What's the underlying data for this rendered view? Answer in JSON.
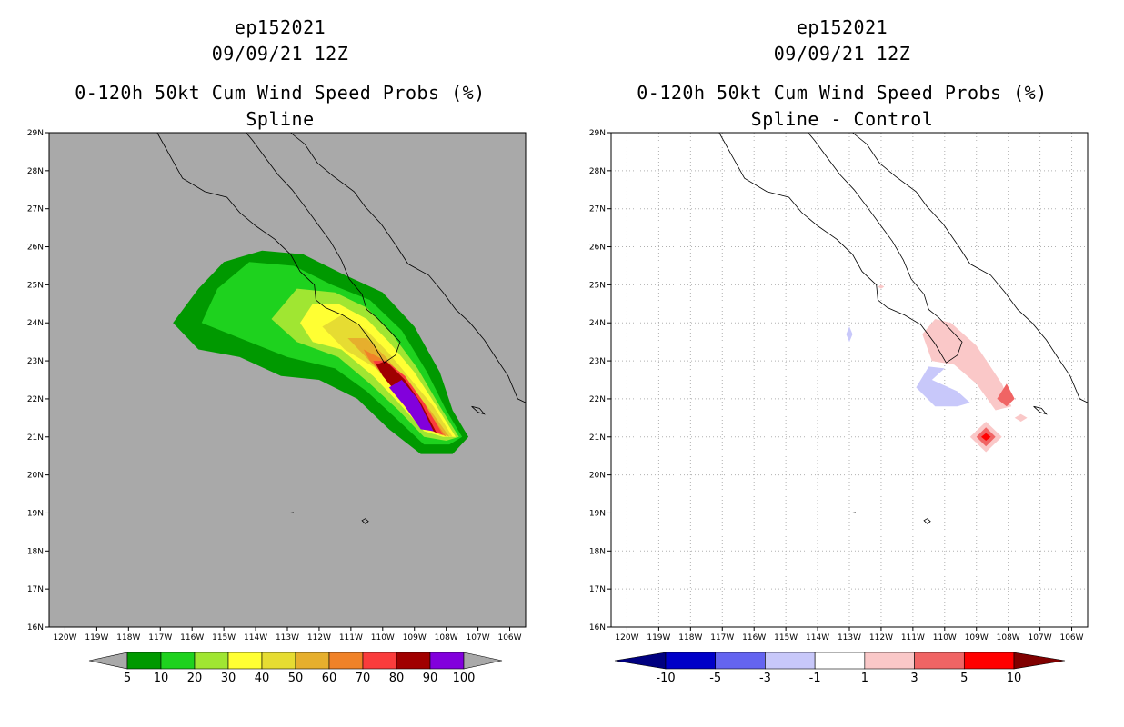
{
  "chart_data": [
    {
      "type": "heatmap",
      "storm_id": "ep152021",
      "datetime": "09/09/21 12Z",
      "title": "0-120h 50kt Cum Wind Speed Probs (%)",
      "subtitle": "Spline",
      "xlim": [
        -120.5,
        -105.5
      ],
      "ylim": [
        16,
        29
      ],
      "grid": false,
      "background_color": "#a9a9a9",
      "x_tick_labels": [
        "120W",
        "119W",
        "118W",
        "117W",
        "116W",
        "115W",
        "114W",
        "113W",
        "112W",
        "111W",
        "110W",
        "109W",
        "108W",
        "107W",
        "106W"
      ],
      "y_tick_labels": [
        "16N",
        "17N",
        "18N",
        "19N",
        "20N",
        "21N",
        "22N",
        "23N",
        "24N",
        "25N",
        "26N",
        "27N",
        "28N",
        "29N"
      ],
      "colorbar": {
        "labels": [
          "5",
          "10",
          "20",
          "30",
          "40",
          "50",
          "60",
          "70",
          "80",
          "90",
          "100"
        ],
        "colors": [
          "#009900",
          "#1ed21e",
          "#a0e632",
          "#ffff33",
          "#e6dc32",
          "#e6af2d",
          "#f08228",
          "#fa3c3c",
          "#a00000",
          "#8200dc"
        ],
        "under_color": "#a9a9a9",
        "over_color": "#a9a9a9"
      },
      "contours": [
        {
          "level": 5,
          "color": "#009900",
          "points": [
            [
              -116.6,
              24.0
            ],
            [
              -115.8,
              24.9
            ],
            [
              -115.0,
              25.6
            ],
            [
              -113.8,
              25.9
            ],
            [
              -112.5,
              25.8
            ],
            [
              -111.3,
              25.3
            ],
            [
              -110.0,
              24.8
            ],
            [
              -109.0,
              23.9
            ],
            [
              -108.2,
              22.7
            ],
            [
              -107.8,
              21.7
            ],
            [
              -107.3,
              21.0
            ],
            [
              -107.8,
              20.55
            ],
            [
              -108.8,
              20.55
            ],
            [
              -109.8,
              21.2
            ],
            [
              -110.8,
              22.0
            ],
            [
              -112.0,
              22.5
            ],
            [
              -113.2,
              22.6
            ],
            [
              -114.5,
              23.1
            ],
            [
              -115.8,
              23.3
            ]
          ]
        },
        {
          "level": 10,
          "color": "#1ed21e",
          "points": [
            [
              -115.7,
              24.0
            ],
            [
              -115.2,
              24.9
            ],
            [
              -114.2,
              25.6
            ],
            [
              -112.8,
              25.5
            ],
            [
              -111.6,
              25.0
            ],
            [
              -110.4,
              24.6
            ],
            [
              -109.4,
              23.8
            ],
            [
              -108.6,
              22.7
            ],
            [
              -108.0,
              21.7
            ],
            [
              -107.5,
              21.0
            ],
            [
              -107.9,
              20.8
            ],
            [
              -108.7,
              20.8
            ],
            [
              -109.6,
              21.5
            ],
            [
              -110.5,
              22.2
            ],
            [
              -111.5,
              22.8
            ],
            [
              -113.0,
              23.1
            ],
            [
              -114.5,
              23.6
            ]
          ]
        },
        {
          "level": 20,
          "color": "#a0e632",
          "points": [
            [
              -113.5,
              24.1
            ],
            [
              -112.7,
              24.9
            ],
            [
              -111.5,
              24.8
            ],
            [
              -110.5,
              24.4
            ],
            [
              -109.7,
              23.7
            ],
            [
              -108.9,
              22.8
            ],
            [
              -108.2,
              21.8
            ],
            [
              -107.6,
              21.0
            ],
            [
              -108.0,
              20.9
            ],
            [
              -108.7,
              21.0
            ],
            [
              -109.5,
              21.7
            ],
            [
              -110.4,
              22.4
            ],
            [
              -111.4,
              23.1
            ],
            [
              -112.7,
              23.5
            ]
          ]
        },
        {
          "level": 30,
          "color": "#ffff33",
          "points": [
            [
              -112.6,
              24.0
            ],
            [
              -112.2,
              24.5
            ],
            [
              -111.4,
              24.5
            ],
            [
              -110.5,
              24.1
            ],
            [
              -109.8,
              23.5
            ],
            [
              -109.0,
              22.7
            ],
            [
              -108.3,
              21.8
            ],
            [
              -107.7,
              21.0
            ],
            [
              -108.1,
              21.0
            ],
            [
              -108.7,
              21.15
            ],
            [
              -109.5,
              21.9
            ],
            [
              -110.3,
              22.6
            ],
            [
              -111.3,
              23.3
            ],
            [
              -112.2,
              23.5
            ]
          ]
        },
        {
          "level": 40,
          "color": "#e6dc32",
          "points": [
            [
              -111.9,
              23.9
            ],
            [
              -111.3,
              24.2
            ],
            [
              -110.5,
              23.8
            ],
            [
              -109.8,
              23.2
            ],
            [
              -109.1,
              22.5
            ],
            [
              -108.4,
              21.8
            ],
            [
              -107.8,
              21.0
            ],
            [
              -108.2,
              21.05
            ],
            [
              -108.7,
              21.3
            ],
            [
              -109.4,
              22.0
            ],
            [
              -110.2,
              22.8
            ],
            [
              -111.2,
              23.3
            ]
          ]
        },
        {
          "level": 50,
          "color": "#e6af2d",
          "points": [
            [
              -111.1,
              23.6
            ],
            [
              -110.5,
              23.6
            ],
            [
              -109.9,
              23.1
            ],
            [
              -109.2,
              22.4
            ],
            [
              -108.5,
              21.7
            ],
            [
              -107.9,
              21.0
            ],
            [
              -108.2,
              21.1
            ],
            [
              -108.8,
              21.5
            ],
            [
              -109.5,
              22.2
            ],
            [
              -110.3,
              22.9
            ]
          ]
        },
        {
          "level": 60,
          "color": "#f08228",
          "points": [
            [
              -110.6,
              23.3
            ],
            [
              -109.9,
              23.0
            ],
            [
              -109.2,
              22.3
            ],
            [
              -108.5,
              21.6
            ],
            [
              -108.0,
              21.0
            ],
            [
              -108.4,
              21.2
            ],
            [
              -109.0,
              21.7
            ],
            [
              -109.8,
              22.5
            ],
            [
              -110.4,
              23.0
            ]
          ]
        },
        {
          "level": 70,
          "color": "#fa3c3c",
          "points": [
            [
              -109.9,
              23.0
            ],
            [
              -109.3,
              22.6
            ],
            [
              -108.7,
              21.9
            ],
            [
              -108.1,
              21.05
            ],
            [
              -108.6,
              21.2
            ],
            [
              -109.2,
              21.8
            ],
            [
              -109.9,
              22.5
            ],
            [
              -110.3,
              23.0
            ]
          ]
        },
        {
          "level": 80,
          "color": "#a00000",
          "points": [
            [
              -109.9,
              23.0
            ],
            [
              -109.3,
              22.5
            ],
            [
              -108.8,
              21.9
            ],
            [
              -108.3,
              21.1
            ],
            [
              -108.8,
              21.35
            ],
            [
              -109.4,
              22.0
            ],
            [
              -110.0,
              22.6
            ],
            [
              -110.2,
              22.9
            ]
          ]
        },
        {
          "level": 90,
          "color": "#8200dc",
          "points": [
            [
              -109.4,
              22.5
            ],
            [
              -108.9,
              22.0
            ],
            [
              -108.4,
              21.15
            ],
            [
              -108.8,
              21.2
            ],
            [
              -109.3,
              21.8
            ],
            [
              -109.8,
              22.3
            ]
          ]
        }
      ]
    },
    {
      "type": "heatmap",
      "storm_id": "ep152021",
      "datetime": "09/09/21 12Z",
      "title": "0-120h 50kt Cum Wind Speed Probs (%)",
      "subtitle": "Spline - Control",
      "xlim": [
        -120.5,
        -105.5
      ],
      "ylim": [
        16,
        29
      ],
      "grid": true,
      "background_color": "#ffffff",
      "x_tick_labels": [
        "120W",
        "119W",
        "118W",
        "117W",
        "116W",
        "115W",
        "114W",
        "113W",
        "112W",
        "111W",
        "110W",
        "109W",
        "108W",
        "107W",
        "106W"
      ],
      "y_tick_labels": [
        "16N",
        "17N",
        "18N",
        "19N",
        "20N",
        "21N",
        "22N",
        "23N",
        "24N",
        "25N",
        "26N",
        "27N",
        "28N",
        "29N"
      ],
      "colorbar": {
        "labels": [
          "-10",
          "-5",
          "-3",
          "-1",
          "1",
          "3",
          "5",
          "10"
        ],
        "colors": [
          "#0000c8",
          "#6464f0",
          "#c8c8fa",
          "#ffffff",
          "#fac8c8",
          "#f06464",
          "#ff0000"
        ],
        "under_color": "#000080",
        "over_color": "#800000"
      },
      "contours": [
        {
          "level": -1,
          "color": "#c8c8fa",
          "points": [
            [
              -110.4,
              22.5
            ],
            [
              -109.6,
              22.2
            ],
            [
              -109.2,
              21.9
            ],
            [
              -109.6,
              21.8
            ],
            [
              -110.3,
              21.8
            ],
            [
              -110.9,
              22.3
            ],
            [
              -110.5,
              22.85
            ],
            [
              -110.0,
              22.8
            ]
          ]
        },
        {
          "level": -1,
          "color": "#c8c8fa",
          "points": [
            [
              -113.0,
              23.9
            ],
            [
              -112.9,
              23.7
            ],
            [
              -113.0,
              23.5
            ],
            [
              -113.1,
              23.7
            ]
          ]
        },
        {
          "level": 1,
          "color": "#fac8c8",
          "points": [
            [
              -110.3,
              24.1
            ],
            [
              -109.8,
              24.0
            ],
            [
              -109.0,
              23.4
            ],
            [
              -108.2,
              22.4
            ],
            [
              -107.9,
              21.8
            ],
            [
              -108.4,
              21.7
            ],
            [
              -109.0,
              22.4
            ],
            [
              -109.7,
              22.9
            ],
            [
              -110.4,
              23.0
            ],
            [
              -110.7,
              23.7
            ]
          ]
        },
        {
          "level": 1,
          "color": "#fac8c8",
          "points": [
            [
              -108.7,
              21.4
            ],
            [
              -108.2,
              21.0
            ],
            [
              -108.7,
              20.6
            ],
            [
              -109.2,
              21.0
            ]
          ]
        },
        {
          "level": 1,
          "color": "#fac8c8",
          "points": [
            [
              -107.6,
              21.6
            ],
            [
              -107.4,
              21.5
            ],
            [
              -107.6,
              21.4
            ],
            [
              -107.8,
              21.5
            ]
          ]
        },
        {
          "level": 1,
          "color": "#fac8c8",
          "points": [
            [
              -112.0,
              25.0
            ],
            [
              -111.9,
              24.95
            ],
            [
              -112.0,
              24.9
            ],
            [
              -112.1,
              24.95
            ]
          ]
        },
        {
          "level": 3,
          "color": "#f06464",
          "points": [
            [
              -108.05,
              22.4
            ],
            [
              -107.8,
              22.0
            ],
            [
              -108.05,
              21.8
            ],
            [
              -108.35,
              22.0
            ]
          ]
        },
        {
          "level": 3,
          "color": "#f06464",
          "points": [
            [
              -108.7,
              21.25
            ],
            [
              -108.4,
              21.0
            ],
            [
              -108.7,
              20.75
            ],
            [
              -109.0,
              21.0
            ]
          ]
        },
        {
          "level": 5,
          "color": "#ff0000",
          "points": [
            [
              -108.7,
              21.1
            ],
            [
              -108.55,
              21.0
            ],
            [
              -108.7,
              20.9
            ],
            [
              -108.85,
              21.0
            ]
          ]
        }
      ]
    }
  ]
}
